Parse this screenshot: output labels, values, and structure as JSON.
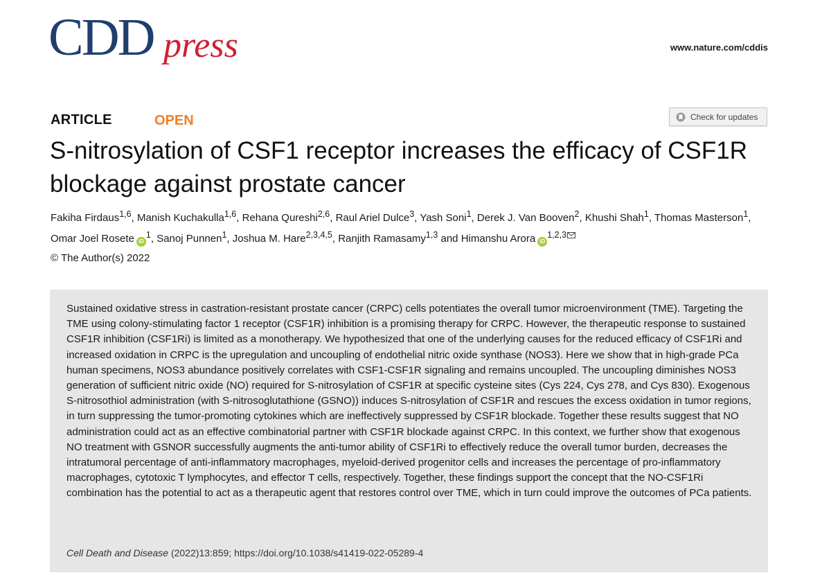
{
  "header": {
    "logo_main": "CDD",
    "logo_press": "press",
    "url": "www.nature.com/cddis"
  },
  "article": {
    "type": "ARTICLE",
    "access": "OPEN",
    "check_updates_label": "Check for updates",
    "title": "S-nitrosylation of CSF1 receptor increases the efficacy of CSF1R blockage against prostate cancer",
    "authors": [
      {
        "name": "Fakiha Firdaus",
        "aff": "1,6"
      },
      {
        "name": "Manish Kuchakulla",
        "aff": "1,6"
      },
      {
        "name": "Rehana Qureshi",
        "aff": "2,6"
      },
      {
        "name": "Raul Ariel Dulce",
        "aff": "3"
      },
      {
        "name": "Yash Soni",
        "aff": "1"
      },
      {
        "name": "Derek J. Van Booven",
        "aff": "2"
      },
      {
        "name": "Khushi Shah",
        "aff": "1"
      },
      {
        "name": "Thomas Masterson",
        "aff": "1"
      },
      {
        "name": "Omar Joel Rosete",
        "aff": "1"
      },
      {
        "name": "Sanoj Punnen",
        "aff": "1"
      },
      {
        "name": "Joshua M. Hare",
        "aff": "2,3,4,5"
      },
      {
        "name": "Ranjith Ramasamy",
        "aff": "1,3"
      },
      {
        "name": "Himanshu Arora",
        "aff": "1,2,3"
      }
    ],
    "orcid_label": "iD",
    "author_conjunction": "and",
    "copyright": "© The Author(s) 2022",
    "abstract": "Sustained oxidative stress in castration-resistant prostate cancer (CRPC) cells potentiates the overall tumor microenvironment (TME). Targeting the TME using colony-stimulating factor 1 receptor (CSF1R) inhibition is a promising therapy for CRPC. However, the therapeutic response to sustained CSF1R inhibition (CSF1Ri) is limited as a monotherapy. We hypothesized that one of the underlying causes for the reduced efficacy of CSF1Ri and increased oxidation in CRPC is the upregulation and uncoupling of endothelial nitric oxide synthase (NOS3). Here we show that in high-grade PCa human specimens, NOS3 abundance positively correlates with CSF1-CSF1R signaling and remains uncoupled. The uncoupling diminishes NOS3 generation of sufficient nitric oxide (NO) required for S-nitrosylation of CSF1R at specific cysteine sites (Cys 224, Cys 278, and Cys 830). Exogenous S-nitrosothiol administration (with S-nitrosoglutathione (GSNO)) induces S-nitrosylation of CSF1R and rescues the excess oxidation in tumor regions, in turn suppressing the tumor-promoting cytokines which are ineffectively suppressed by CSF1R blockade. Together these results suggest that NO administration could act as an effective combinatorial partner with CSF1R blockade against CRPC. In this context, we further show that exogenous NO treatment with GSNOR successfully augments the anti-tumor ability of CSF1Ri to effectively reduce the overall tumor burden, decreases the intratumoral percentage of anti-inflammatory macrophages, myeloid-derived progenitor cells and increases the percentage of pro-inflammatory macrophages, cytotoxic T lymphocytes, and effector T cells, respectively. Together, these findings support the concept that the NO-CSF1Ri combination has the potential to act as a therapeutic agent that restores control over TME, which in turn could improve the outcomes of PCa patients.",
    "citation": {
      "journal": "Cell Death and Disease",
      "details": "(2022)13:859",
      "separator": ";",
      "doi": "https://doi.org/10.1038/s41419-022-05289-4"
    }
  },
  "colors": {
    "logo_blue": "#1f3f6e",
    "logo_red": "#cf2030",
    "open_orange": "#f07e26",
    "orcid_green": "#a6ce39",
    "abstract_bg": "#e6e6e6"
  },
  "icons": {
    "updates": "bookmark-icon",
    "orcid": "orcid-icon",
    "email": "envelope-icon"
  }
}
